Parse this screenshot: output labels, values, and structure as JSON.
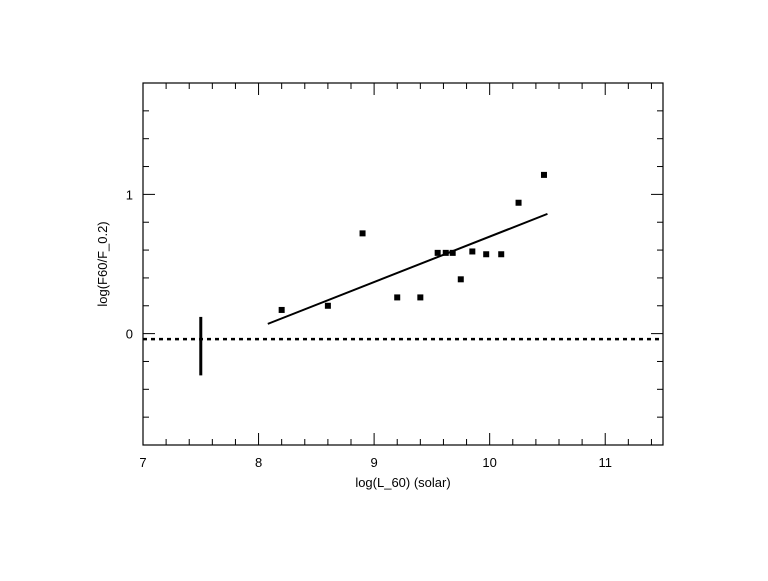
{
  "chart_data": {
    "type": "scatter",
    "title": "",
    "xlabel": "log(L_60)  (solar)",
    "ylabel": "log(F60/F_0.2)",
    "xlim": [
      7,
      11.5
    ],
    "ylim": [
      -0.8,
      1.8
    ],
    "xticks_major": [
      7,
      8,
      9,
      10,
      11
    ],
    "xtick_labels": [
      "7",
      "8",
      "9",
      "10",
      "11"
    ],
    "xticks_minor_step": 0.2,
    "yticks_major": [
      0,
      1
    ],
    "ytick_labels": [
      "0",
      "1"
    ],
    "yticks_minor_step": 0.2,
    "grid": false,
    "series": [
      {
        "kind": "points",
        "x": [
          8.2,
          8.6,
          8.9,
          9.2,
          9.4,
          9.55,
          9.62,
          9.68,
          9.75,
          9.85,
          9.97,
          10.1,
          10.25,
          10.47
        ],
        "y": [
          0.17,
          0.2,
          0.72,
          0.26,
          0.26,
          0.58,
          0.58,
          0.58,
          0.39,
          0.59,
          0.57,
          0.57,
          0.94,
          1.14
        ]
      },
      {
        "kind": "fit-line",
        "x": [
          8.08,
          10.5
        ],
        "y": [
          0.07,
          0.86
        ]
      },
      {
        "kind": "dotted-line",
        "x": [
          7,
          11.5
        ],
        "y": [
          -0.04,
          -0.04
        ]
      },
      {
        "kind": "error-bar",
        "x": [
          7.5,
          7.5
        ],
        "y": [
          -0.3,
          0.12
        ]
      }
    ]
  }
}
